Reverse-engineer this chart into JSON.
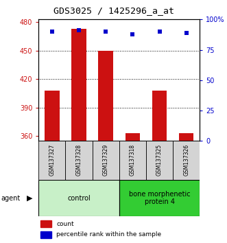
{
  "title": "GDS3025 / 1425296_a_at",
  "samples": [
    "GSM137327",
    "GSM137328",
    "GSM137329",
    "GSM137318",
    "GSM137325",
    "GSM137326"
  ],
  "counts": [
    408,
    473,
    450,
    363,
    408,
    363
  ],
  "percentiles": [
    90,
    91,
    90,
    88,
    90,
    89
  ],
  "ymin": 355,
  "ymax": 483,
  "yticks": [
    360,
    390,
    420,
    450,
    480
  ],
  "y2ticks": [
    0,
    25,
    50,
    75,
    100
  ],
  "y2labels": [
    "0",
    "25",
    "50",
    "75",
    "100%"
  ],
  "bar_color": "#cc1111",
  "dot_color": "#0000cc",
  "bar_width": 0.55,
  "groups": [
    {
      "label": "control",
      "indices": [
        0,
        1,
        2
      ],
      "color": "#c8f0c8"
    },
    {
      "label": "bone morphenetic\nprotein 4",
      "indices": [
        3,
        4,
        5
      ],
      "color": "#33cc33"
    }
  ],
  "agent_label": "agent",
  "legend_count_label": "count",
  "legend_percentile_label": "percentile rank within the sample",
  "title_fontsize": 9.5,
  "tick_fontsize": 7,
  "sample_fontsize": 5.5,
  "group_fontsize": 7,
  "legend_fontsize": 6.5
}
